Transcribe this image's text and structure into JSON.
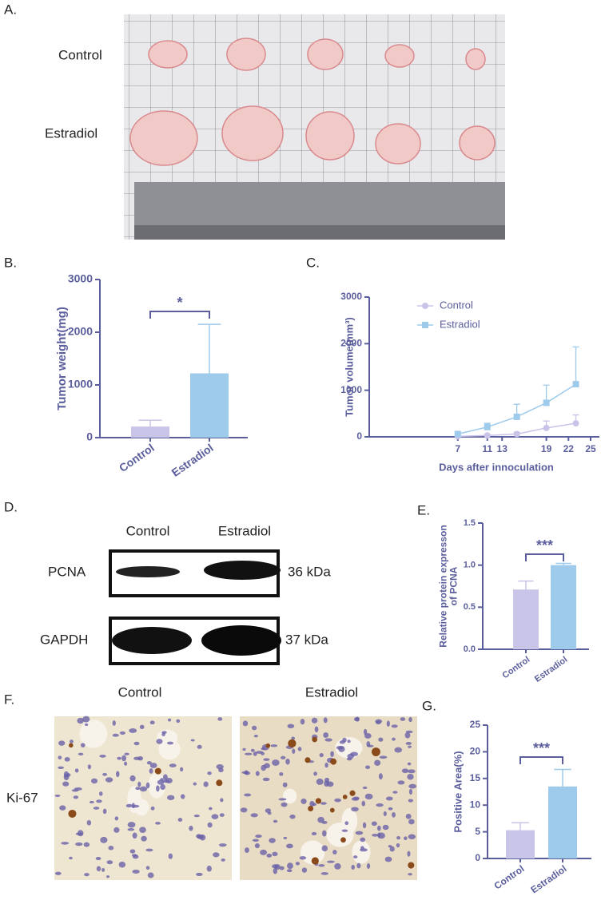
{
  "figure": {
    "panel_a": {
      "letter": "A.",
      "row_labels": [
        "Control",
        "Estradiol"
      ]
    },
    "panel_b": {
      "letter": "B."
    },
    "panel_c": {
      "letter": "C."
    },
    "panel_d": {
      "letter": "D.",
      "columns": [
        "Control",
        "Estradiol"
      ],
      "rows": [
        {
          "label": "PCNA",
          "size": "36 kDa"
        },
        {
          "label": "GAPDH",
          "size": "37 kDa"
        }
      ]
    },
    "panel_e": {
      "letter": "E."
    },
    "panel_f": {
      "letter": "F.",
      "columns": [
        "Control",
        "Estradiol"
      ],
      "row_label": "Ki-67"
    },
    "panel_g": {
      "letter": "G."
    }
  },
  "chart_data": [
    {
      "type": "bar",
      "ylabel": [
        "Tumor weight(mg)"
      ],
      "categories": [
        "Control",
        "Estradiol"
      ],
      "values": [
        210,
        1220
      ],
      "errors": [
        120,
        930
      ],
      "colors": [
        "#c8c5e8",
        "#9ecaec"
      ],
      "ylim": [
        0,
        3000
      ],
      "yticks": [
        0,
        1000,
        2000,
        3000
      ],
      "annotation": "*"
    },
    {
      "type": "line",
      "ylabel": [
        "Tumor volume(mm³)"
      ],
      "xlabel": "Days after innoculation",
      "x": [
        7,
        11,
        15,
        19,
        23
      ],
      "series": [
        {
          "name": "Control",
          "color": "#c9c3e8",
          "marker": "circle",
          "values": [
            10,
            30,
            60,
            190,
            290
          ],
          "errors": [
            10,
            20,
            40,
            150,
            180
          ]
        },
        {
          "name": "Estradiol",
          "color": "#9ecaec",
          "marker": "square",
          "values": [
            60,
            210,
            430,
            730,
            1130
          ],
          "errors": [
            30,
            80,
            270,
            380,
            800
          ]
        }
      ],
      "xlim": [
        -5,
        25
      ],
      "xticks": [
        7,
        11,
        13,
        19,
        22,
        25
      ],
      "ylim": [
        0,
        3000
      ],
      "yticks": [
        0,
        1000,
        2000,
        3000
      ],
      "legend": "upper left"
    },
    {
      "type": "bar",
      "ylabel": [
        "Relative protein expresson",
        "of PCNA"
      ],
      "categories": [
        "Control",
        "Estradiol"
      ],
      "values": [
        0.71,
        1.0
      ],
      "errors": [
        0.1,
        0.02
      ],
      "colors": [
        "#c8c5e8",
        "#9ecaec"
      ],
      "ylim": [
        0,
        1.5
      ],
      "yticks": [
        {
          "value": 0,
          "label": "0.0"
        },
        0.5,
        {
          "value": 1,
          "label": "1.0"
        },
        1.5
      ],
      "annotation": "***"
    },
    {
      "type": "bar",
      "ylabel": [
        "Positive Area(%)"
      ],
      "categories": [
        "Control",
        "Estradiol"
      ],
      "values": [
        5.3,
        13.5
      ],
      "errors": [
        1.4,
        3.2
      ],
      "colors": [
        "#c8c5e8",
        "#9ecaec"
      ],
      "ylim": [
        0,
        25
      ],
      "yticks": [
        0,
        5,
        10,
        15,
        20,
        25
      ],
      "annotation": "***"
    }
  ]
}
